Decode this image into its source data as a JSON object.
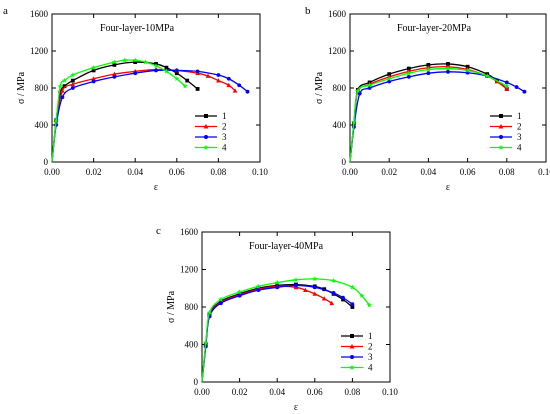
{
  "chart_data": [
    {
      "panel_label": "a",
      "type": "line",
      "title": "Four-layer-10MPa",
      "xlabel": "ε",
      "ylabel": "σ / MPa",
      "xlim": [
        0.0,
        0.1
      ],
      "ylim": [
        0,
        1600
      ],
      "xticks": [
        "0.00",
        "0.02",
        "0.04",
        "0.06",
        "0.08",
        "0.10"
      ],
      "yticks": [
        "0",
        "400",
        "800",
        "1200",
        "1600"
      ],
      "legend_position": "bottom-right",
      "series": [
        {
          "name": "1",
          "color": "#000000",
          "marker": "square",
          "x": [
            0,
            0.002,
            0.004,
            0.006,
            0.01,
            0.02,
            0.03,
            0.04,
            0.05,
            0.055,
            0.06,
            0.065,
            0.07
          ],
          "y": [
            0,
            450,
            750,
            820,
            880,
            990,
            1050,
            1080,
            1060,
            1020,
            960,
            880,
            790
          ]
        },
        {
          "name": "2",
          "color": "#ff0000",
          "marker": "triangle",
          "x": [
            0,
            0.002,
            0.005,
            0.01,
            0.02,
            0.03,
            0.04,
            0.05,
            0.06,
            0.07,
            0.075,
            0.08,
            0.085,
            0.088
          ],
          "y": [
            0,
            420,
            770,
            840,
            900,
            950,
            980,
            1000,
            990,
            960,
            930,
            880,
            830,
            770
          ]
        },
        {
          "name": "3",
          "color": "#0000ff",
          "marker": "circle",
          "x": [
            0,
            0.002,
            0.005,
            0.01,
            0.02,
            0.03,
            0.04,
            0.05,
            0.06,
            0.07,
            0.08,
            0.085,
            0.09,
            0.094
          ],
          "y": [
            0,
            400,
            700,
            800,
            870,
            920,
            960,
            990,
            990,
            980,
            940,
            900,
            830,
            760
          ]
        },
        {
          "name": "4",
          "color": "#00ff00",
          "marker": "star",
          "x": [
            0,
            0.002,
            0.004,
            0.006,
            0.01,
            0.02,
            0.03,
            0.035,
            0.04,
            0.045,
            0.05,
            0.055,
            0.06,
            0.064
          ],
          "y": [
            0,
            450,
            820,
            880,
            940,
            1020,
            1080,
            1100,
            1100,
            1080,
            1040,
            980,
            900,
            820
          ]
        }
      ]
    },
    {
      "panel_label": "b",
      "type": "line",
      "title": "Four-layer-20MPa",
      "xlabel": "ε",
      "ylabel": "σ / MPa",
      "xlim": [
        0.0,
        0.1
      ],
      "ylim": [
        0,
        1600
      ],
      "xticks": [
        "0.00",
        "0.02",
        "0.04",
        "0.06",
        "0.08",
        "0.10"
      ],
      "yticks": [
        "0",
        "400",
        "800",
        "1200",
        "1600"
      ],
      "legend_position": "bottom-right",
      "series": [
        {
          "name": "1",
          "color": "#000000",
          "marker": "square",
          "x": [
            0,
            0.002,
            0.004,
            0.01,
            0.02,
            0.03,
            0.04,
            0.05,
            0.06,
            0.07,
            0.075,
            0.08
          ],
          "y": [
            0,
            420,
            780,
            860,
            950,
            1010,
            1050,
            1060,
            1030,
            950,
            880,
            790
          ]
        },
        {
          "name": "2",
          "color": "#ff0000",
          "marker": "triangle",
          "x": [
            0,
            0.002,
            0.004,
            0.01,
            0.02,
            0.03,
            0.04,
            0.05,
            0.06,
            0.07,
            0.075,
            0.08
          ],
          "y": [
            0,
            400,
            760,
            840,
            920,
            980,
            1020,
            1030,
            1000,
            930,
            870,
            790
          ]
        },
        {
          "name": "3",
          "color": "#0000ff",
          "marker": "circle",
          "x": [
            0,
            0.002,
            0.005,
            0.01,
            0.02,
            0.03,
            0.04,
            0.05,
            0.06,
            0.07,
            0.08,
            0.085,
            0.089
          ],
          "y": [
            0,
            380,
            740,
            800,
            870,
            920,
            960,
            975,
            965,
            930,
            860,
            810,
            760
          ]
        },
        {
          "name": "4",
          "color": "#00ff00",
          "marker": "star",
          "x": [
            0,
            0.002,
            0.004,
            0.01,
            0.02,
            0.03,
            0.04,
            0.05,
            0.06,
            0.07,
            0.08
          ],
          "y": [
            0,
            430,
            770,
            830,
            900,
            960,
            1000,
            1010,
            990,
            930,
            820
          ]
        }
      ]
    },
    {
      "panel_label": "c",
      "type": "line",
      "title": "Four-layer-40MPa",
      "xlabel": "ε",
      "ylabel": "σ / MPa",
      "xlim": [
        0.0,
        0.1
      ],
      "ylim": [
        0,
        1600
      ],
      "xticks": [
        "0.00",
        "0.02",
        "0.04",
        "0.06",
        "0.08",
        "0.10"
      ],
      "yticks": [
        "0",
        "400",
        "800",
        "1200",
        "1600"
      ],
      "legend_position": "bottom-right",
      "series": [
        {
          "name": "1",
          "color": "#000000",
          "marker": "square",
          "x": [
            0,
            0.002,
            0.004,
            0.01,
            0.02,
            0.03,
            0.04,
            0.05,
            0.06,
            0.065,
            0.07,
            0.075,
            0.08
          ],
          "y": [
            0,
            400,
            720,
            860,
            940,
            1000,
            1030,
            1040,
            1020,
            990,
            940,
            880,
            800
          ]
        },
        {
          "name": "2",
          "color": "#ff0000",
          "marker": "triangle",
          "x": [
            0,
            0.002,
            0.004,
            0.01,
            0.02,
            0.03,
            0.04,
            0.05,
            0.055,
            0.06,
            0.065,
            0.069
          ],
          "y": [
            0,
            390,
            710,
            850,
            930,
            990,
            1020,
            1010,
            980,
            940,
            890,
            840
          ]
        },
        {
          "name": "3",
          "color": "#0000ff",
          "marker": "circle",
          "x": [
            0,
            0.002,
            0.004,
            0.01,
            0.02,
            0.03,
            0.04,
            0.05,
            0.06,
            0.07,
            0.075,
            0.08
          ],
          "y": [
            0,
            380,
            700,
            840,
            920,
            980,
            1010,
            1030,
            1010,
            950,
            900,
            830
          ]
        },
        {
          "name": "4",
          "color": "#00ff00",
          "marker": "star",
          "x": [
            0,
            0.002,
            0.004,
            0.01,
            0.02,
            0.03,
            0.04,
            0.05,
            0.06,
            0.07,
            0.08,
            0.085,
            0.089
          ],
          "y": [
            0,
            420,
            740,
            880,
            960,
            1020,
            1060,
            1090,
            1100,
            1080,
            1010,
            920,
            820
          ]
        }
      ]
    }
  ]
}
